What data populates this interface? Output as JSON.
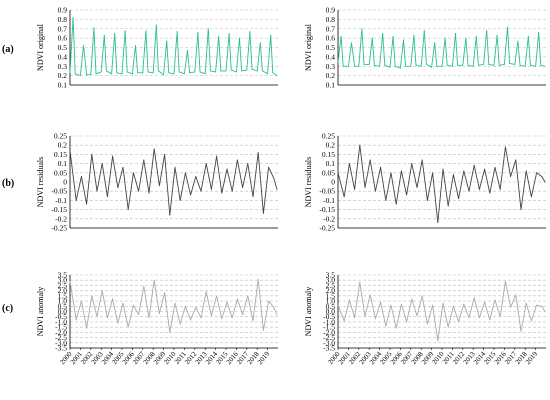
{
  "figure": {
    "row_labels": [
      "(a)",
      "(b)",
      "(c)"
    ]
  },
  "chart_data": [
    {
      "id": "a-left",
      "type": "line",
      "row": 0,
      "col": 0,
      "ylabel": "NDVI original",
      "ylim": [
        0.1,
        0.9
      ],
      "yticks": [
        "0.9",
        "0.8",
        "0.7",
        "0.6",
        "0.5",
        "0.4",
        "0.3",
        "0.2",
        "0.1"
      ],
      "grid": true,
      "color": "#2bbf8e",
      "x": [
        2000.0,
        2000.3,
        2000.5,
        2001.0,
        2001.3,
        2001.6,
        2002.0,
        2002.3,
        2002.5,
        2003.0,
        2003.3,
        2003.5,
        2004.0,
        2004.3,
        2004.5,
        2005.0,
        2005.3,
        2005.5,
        2006.0,
        2006.3,
        2006.5,
        2007.0,
        2007.3,
        2007.5,
        2008.0,
        2008.3,
        2008.5,
        2009.0,
        2009.3,
        2009.5,
        2010.0,
        2010.3,
        2010.5,
        2011.0,
        2011.3,
        2011.5,
        2012.0,
        2012.3,
        2012.5,
        2013.0,
        2013.3,
        2013.5,
        2014.0,
        2014.3,
        2014.5,
        2015.0,
        2015.3,
        2015.5,
        2016.0,
        2016.3,
        2016.5,
        2017.0,
        2017.3,
        2017.5,
        2018.0,
        2018.3,
        2018.5,
        2019.0,
        2019.3,
        2019.5,
        2019.9
      ],
      "values": [
        0.23,
        0.82,
        0.22,
        0.2,
        0.52,
        0.21,
        0.21,
        0.71,
        0.22,
        0.24,
        0.63,
        0.25,
        0.22,
        0.65,
        0.23,
        0.22,
        0.68,
        0.24,
        0.22,
        0.52,
        0.23,
        0.23,
        0.68,
        0.24,
        0.23,
        0.74,
        0.25,
        0.21,
        0.57,
        0.23,
        0.22,
        0.67,
        0.24,
        0.22,
        0.47,
        0.23,
        0.24,
        0.66,
        0.24,
        0.22,
        0.7,
        0.25,
        0.24,
        0.62,
        0.25,
        0.25,
        0.65,
        0.26,
        0.24,
        0.6,
        0.25,
        0.26,
        0.67,
        0.27,
        0.25,
        0.55,
        0.25,
        0.22,
        0.63,
        0.23,
        0.2
      ]
    },
    {
      "id": "a-right",
      "type": "line",
      "row": 0,
      "col": 1,
      "ylabel": "NDVI original",
      "ylim": [
        0.1,
        0.9
      ],
      "yticks": [
        "0.9",
        "0.8",
        "0.7",
        "0.6",
        "0.5",
        "0.4",
        "0.3",
        "0.2",
        "0.1"
      ],
      "grid": true,
      "color": "#2bbf8e",
      "x": [
        2000.0,
        2000.3,
        2000.5,
        2001.0,
        2001.3,
        2001.6,
        2002.0,
        2002.3,
        2002.5,
        2003.0,
        2003.3,
        2003.5,
        2004.0,
        2004.3,
        2004.5,
        2005.0,
        2005.3,
        2005.5,
        2006.0,
        2006.3,
        2006.5,
        2007.0,
        2007.3,
        2007.5,
        2008.0,
        2008.3,
        2008.5,
        2009.0,
        2009.3,
        2009.5,
        2010.0,
        2010.3,
        2010.5,
        2011.0,
        2011.3,
        2011.5,
        2012.0,
        2012.3,
        2012.5,
        2013.0,
        2013.3,
        2013.5,
        2014.0,
        2014.3,
        2014.5,
        2015.0,
        2015.3,
        2015.5,
        2016.0,
        2016.3,
        2016.5,
        2017.0,
        2017.3,
        2017.5,
        2018.0,
        2018.3,
        2018.5,
        2019.0,
        2019.3,
        2019.5,
        2019.9
      ],
      "values": [
        0.34,
        0.62,
        0.3,
        0.3,
        0.55,
        0.3,
        0.3,
        0.7,
        0.32,
        0.32,
        0.6,
        0.31,
        0.3,
        0.65,
        0.31,
        0.29,
        0.62,
        0.3,
        0.28,
        0.58,
        0.3,
        0.3,
        0.63,
        0.31,
        0.3,
        0.68,
        0.32,
        0.29,
        0.55,
        0.3,
        0.3,
        0.6,
        0.31,
        0.3,
        0.65,
        0.31,
        0.31,
        0.6,
        0.31,
        0.3,
        0.62,
        0.31,
        0.32,
        0.68,
        0.32,
        0.31,
        0.63,
        0.31,
        0.32,
        0.72,
        0.33,
        0.32,
        0.57,
        0.31,
        0.3,
        0.62,
        0.31,
        0.3,
        0.66,
        0.31,
        0.3
      ]
    },
    {
      "id": "b-left",
      "type": "line",
      "row": 1,
      "col": 0,
      "ylabel": "NDVI residuals",
      "ylim": [
        -0.25,
        0.25
      ],
      "yticks": [
        "0.25",
        "0.2",
        "0.15",
        "0.1",
        "0.05",
        "0",
        "-0.05",
        "-0.1",
        "-0.15",
        "-0.2",
        "-0.25"
      ],
      "grid": true,
      "color": "#444444",
      "x": [
        2000.0,
        2000.6,
        2001.1,
        2001.6,
        2002.1,
        2002.6,
        2003.1,
        2003.6,
        2004.1,
        2004.6,
        2005.1,
        2005.6,
        2006.1,
        2006.6,
        2007.1,
        2007.6,
        2008.1,
        2008.6,
        2009.1,
        2009.6,
        2010.1,
        2010.6,
        2011.1,
        2011.6,
        2012.1,
        2012.6,
        2013.1,
        2013.6,
        2014.1,
        2014.6,
        2015.1,
        2015.6,
        2016.1,
        2016.6,
        2017.1,
        2017.6,
        2018.1,
        2018.6,
        2019.1,
        2019.6,
        2019.9
      ],
      "values": [
        0.17,
        -0.1,
        0.03,
        -0.12,
        0.15,
        -0.05,
        0.1,
        -0.08,
        0.14,
        -0.03,
        0.08,
        -0.15,
        0.05,
        -0.05,
        0.12,
        -0.06,
        0.18,
        -0.02,
        0.15,
        -0.18,
        0.08,
        -0.1,
        0.05,
        -0.07,
        0.03,
        -0.05,
        0.1,
        -0.04,
        0.14,
        -0.06,
        0.07,
        -0.05,
        0.12,
        -0.03,
        0.1,
        -0.08,
        0.16,
        -0.17,
        0.08,
        0.02,
        -0.04
      ]
    },
    {
      "id": "b-right",
      "type": "line",
      "row": 1,
      "col": 1,
      "ylabel": "NDVI residuals",
      "ylim": [
        -0.25,
        0.25
      ],
      "yticks": [
        "0.25",
        "0.2",
        "0.15",
        "0.1",
        "0.05",
        "0",
        "-0.05",
        "-0.1",
        "-0.15",
        "-0.2",
        "-0.25"
      ],
      "grid": true,
      "color": "#444444",
      "x": [
        2000.0,
        2000.6,
        2001.1,
        2001.6,
        2002.1,
        2002.6,
        2003.1,
        2003.6,
        2004.1,
        2004.6,
        2005.1,
        2005.6,
        2006.1,
        2006.6,
        2007.1,
        2007.6,
        2008.1,
        2008.6,
        2009.1,
        2009.6,
        2010.1,
        2010.6,
        2011.1,
        2011.6,
        2012.1,
        2012.6,
        2013.1,
        2013.6,
        2014.1,
        2014.6,
        2015.1,
        2015.6,
        2016.1,
        2016.6,
        2017.1,
        2017.6,
        2018.1,
        2018.6,
        2019.1,
        2019.6,
        2019.9
      ],
      "values": [
        0.05,
        -0.08,
        0.1,
        -0.04,
        0.2,
        -0.03,
        0.12,
        -0.05,
        0.08,
        -0.1,
        0.05,
        -0.12,
        0.06,
        -0.07,
        0.1,
        -0.03,
        0.12,
        -0.1,
        0.05,
        -0.22,
        0.07,
        -0.13,
        0.04,
        -0.09,
        0.06,
        -0.05,
        0.09,
        -0.04,
        0.07,
        -0.06,
        0.08,
        -0.04,
        0.19,
        0.03,
        0.12,
        -0.15,
        0.06,
        -0.08,
        0.05,
        0.03,
        0.0
      ]
    },
    {
      "id": "c-left",
      "type": "line",
      "row": 2,
      "col": 0,
      "ylabel": "NDVI anomaly",
      "ylim": [
        -3.5,
        3.5
      ],
      "yticks": [
        "3.5",
        "3.0",
        "2.5",
        "2.0",
        "1.5",
        "1.0",
        "0.5",
        "0.0",
        "-0.5",
        "-1.0",
        "-1.5",
        "-2.0",
        "-2.5",
        "-3.0",
        "-3.5"
      ],
      "grid": true,
      "color": "#aaaaaa",
      "xticks": [
        "2000",
        "2001",
        "2002",
        "2003",
        "2004",
        "2005",
        "2006",
        "2007",
        "2008",
        "2009",
        "2010",
        "2011",
        "2012",
        "2013",
        "2014",
        "2015",
        "2016",
        "2017",
        "2018",
        "2019"
      ],
      "x": [
        2000.0,
        2000.6,
        2001.1,
        2001.6,
        2002.1,
        2002.6,
        2003.1,
        2003.6,
        2004.1,
        2004.6,
        2005.1,
        2005.6,
        2006.1,
        2006.6,
        2007.1,
        2007.6,
        2008.1,
        2008.6,
        2009.1,
        2009.6,
        2010.1,
        2010.6,
        2011.1,
        2011.6,
        2012.1,
        2012.6,
        2013.1,
        2013.6,
        2014.1,
        2014.6,
        2015.1,
        2015.6,
        2016.1,
        2016.6,
        2017.1,
        2017.6,
        2018.1,
        2018.6,
        2019.1,
        2019.6,
        2019.9
      ],
      "values": [
        2.9,
        -0.8,
        1.0,
        -1.6,
        1.5,
        -0.5,
        2.0,
        -0.6,
        1.2,
        -1.1,
        0.8,
        -1.5,
        0.6,
        -0.3,
        2.4,
        -0.6,
        3.0,
        -0.2,
        1.8,
        -2.0,
        0.8,
        -1.2,
        0.5,
        -0.8,
        0.4,
        -0.6,
        1.9,
        -0.4,
        1.5,
        -0.7,
        0.9,
        -0.6,
        1.2,
        -0.3,
        1.5,
        -0.9,
        3.1,
        -1.8,
        1.0,
        0.4,
        -0.3
      ]
    },
    {
      "id": "c-right",
      "type": "line",
      "row": 2,
      "col": 1,
      "ylabel": "NDVI anomaly",
      "ylim": [
        -3.5,
        3.5
      ],
      "yticks": [
        "3.5",
        "3.0",
        "2.5",
        "2.0",
        "1.5",
        "1.0",
        "0.5",
        "0.0",
        "-0.5",
        "-1.0",
        "-1.5",
        "-2.0",
        "-2.5",
        "-3.0",
        "-3.5"
      ],
      "grid": true,
      "color": "#aaaaaa",
      "xticks": [
        "2000",
        "2001",
        "2002",
        "2003",
        "2004",
        "2005",
        "2006",
        "2007",
        "2008",
        "2009",
        "2010",
        "2011",
        "2012",
        "2013",
        "2014",
        "2015",
        "2016",
        "2017",
        "2018",
        "2019"
      ],
      "x": [
        2000.0,
        2000.6,
        2001.1,
        2001.6,
        2002.1,
        2002.6,
        2003.1,
        2003.6,
        2004.1,
        2004.6,
        2005.1,
        2005.6,
        2006.1,
        2006.6,
        2007.1,
        2007.6,
        2008.1,
        2008.6,
        2009.1,
        2009.6,
        2010.1,
        2010.6,
        2011.1,
        2011.6,
        2012.1,
        2012.6,
        2013.1,
        2013.6,
        2014.1,
        2014.6,
        2015.1,
        2015.6,
        2016.1,
        2016.6,
        2017.1,
        2017.6,
        2018.1,
        2018.6,
        2019.1,
        2019.6,
        2019.9
      ],
      "values": [
        0.6,
        -0.9,
        1.1,
        -0.6,
        2.8,
        -0.5,
        1.6,
        -0.7,
        0.9,
        -1.4,
        0.6,
        -1.6,
        0.7,
        -1.0,
        1.2,
        -0.4,
        1.5,
        -1.2,
        0.6,
        -2.8,
        0.8,
        -1.5,
        0.5,
        -1.0,
        0.7,
        -0.6,
        1.3,
        -0.6,
        0.9,
        -0.8,
        1.1,
        -0.5,
        2.9,
        0.4,
        1.6,
        -1.9,
        0.8,
        -0.9,
        0.6,
        0.5,
        0.0
      ]
    }
  ]
}
